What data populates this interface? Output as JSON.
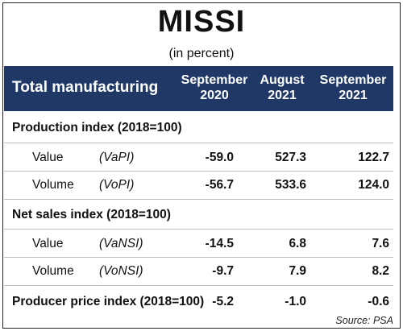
{
  "title": "MISSI",
  "subtitle": "(in percent)",
  "table": {
    "header_label": "Total manufacturing",
    "columns": [
      {
        "line1": "September",
        "line2": "2020"
      },
      {
        "line1": "August",
        "line2": "2021"
      },
      {
        "line1": "September",
        "line2": "2021"
      }
    ],
    "sections": {
      "production": {
        "label": "Production index (2018=100)",
        "rows": [
          {
            "name": "Value",
            "abbr": "(VaPI)",
            "values": [
              "-59.0",
              "527.3",
              "122.7"
            ]
          },
          {
            "name": "Volume",
            "abbr": "(VoPI)",
            "values": [
              "-56.7",
              "533.6",
              "124.0"
            ]
          }
        ]
      },
      "net_sales": {
        "label": "Net sales index (2018=100)",
        "rows": [
          {
            "name": "Value",
            "abbr": "(VaNSI)",
            "values": [
              "-14.5",
              "6.8",
              "7.6"
            ]
          },
          {
            "name": "Volume",
            "abbr": "(VoNSI)",
            "values": [
              "-9.7",
              "7.9",
              "8.2"
            ]
          }
        ]
      },
      "producer_price": {
        "label": "Producer price index (2018=100)",
        "values": [
          "-5.2",
          "-1.0",
          "-0.6"
        ]
      }
    }
  },
  "source": "Source: PSA"
}
